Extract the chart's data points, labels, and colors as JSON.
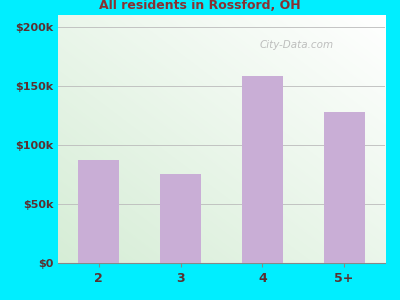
{
  "subtitle": "All residents in Rossford, OH",
  "categories": [
    "2",
    "3",
    "4",
    "5+"
  ],
  "values": [
    87000,
    75000,
    158000,
    128000
  ],
  "bar_color": "#c9aed6",
  "title_color": "#1a1a1a",
  "subtitle_color": "#8b3030",
  "tick_label_color": "#5a3030",
  "background_outer": "#00eeff",
  "background_inner_topleft": "#d6edd6",
  "background_inner_bottomright": "#f0fff0",
  "ylim": [
    0,
    210000
  ],
  "yticks": [
    0,
    50000,
    100000,
    150000,
    200000
  ],
  "ytick_labels": [
    "$0",
    "$50k",
    "$100k",
    "$150k",
    "$200k"
  ],
  "watermark": "City-Data.com",
  "title_fontsize": 12,
  "subtitle_fontsize": 9
}
